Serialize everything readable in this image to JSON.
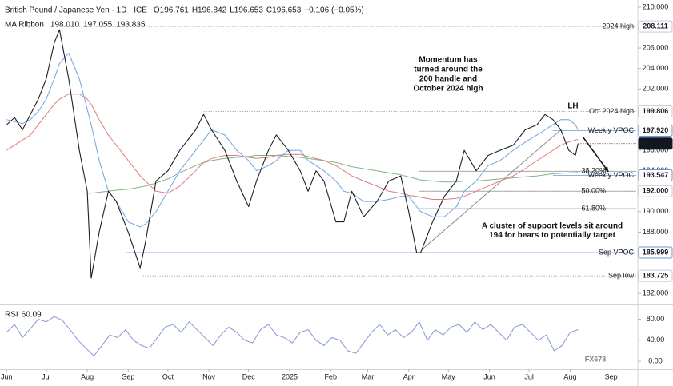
{
  "chart_data": [
    {
      "type": "line",
      "title": "British Pound / Japanese Yen · 1D · ICE",
      "ohlc": [
        "O196.761",
        "H196.842",
        "L196.653",
        "C196.653",
        "−0.106 (−0.05%)"
      ],
      "legend_title": "MA Ribbon",
      "xlim": [
        -5,
        476
      ],
      "ylim": [
        181,
        210.7
      ],
      "yticks": [
        {
          "value": 210,
          "label": "210.000"
        },
        {
          "value": 206,
          "label": "206.000"
        },
        {
          "value": 204,
          "label": "204.000"
        },
        {
          "value": 202,
          "label": "202.000"
        },
        {
          "value": 196,
          "label": "196.000"
        },
        {
          "value": 194,
          "label": "194.000"
        },
        {
          "value": 190,
          "label": "190.000"
        },
        {
          "value": 188,
          "label": "188.000"
        },
        {
          "value": 182,
          "label": "182.000"
        }
      ],
      "x": [
        0,
        6,
        12,
        18,
        24,
        30,
        36,
        40,
        47,
        55,
        61,
        64,
        70,
        77,
        83,
        92,
        101,
        105,
        113,
        122,
        131,
        143,
        149,
        155,
        165,
        174,
        183,
        189,
        198,
        204,
        213,
        222,
        228,
        234,
        240,
        249,
        255,
        261,
        270,
        280,
        289,
        298,
        304,
        310,
        313,
        322,
        331,
        340,
        346,
        355,
        364,
        373,
        383,
        392,
        401,
        407,
        413,
        419,
        425,
        430,
        432
      ],
      "series": [
        {
          "color": "#1c1f26",
          "values": [
            198.5,
            199.2,
            198,
            199.5,
            201,
            203,
            206.5,
            207.8,
            203,
            196,
            192,
            183.5,
            188,
            192,
            191,
            188,
            184.5,
            187,
            193,
            194,
            196,
            198,
            199.5,
            198,
            196,
            193,
            190.5,
            193,
            196,
            197.5,
            196,
            194,
            192,
            194,
            193,
            189,
            189,
            192,
            189.5,
            191,
            193,
            193.5,
            190,
            186,
            186,
            189,
            191.5,
            193,
            196,
            194,
            195.5,
            196,
            196.5,
            198,
            198.5,
            199.5,
            199,
            198,
            196,
            195.5,
            196.653
          ]
        },
        {
          "name": "198.010",
          "color": "#6fa3e0",
          "values": [
            199,
            198.8,
            198.6,
            199,
            199.8,
            201,
            203,
            204.5,
            205.5,
            203,
            200,
            198.5,
            195,
            192,
            191,
            189,
            188.5,
            188.8,
            190,
            192,
            194,
            196,
            197,
            198,
            197.5,
            196,
            195,
            194,
            194.5,
            195,
            196,
            196,
            195,
            194.5,
            194,
            193,
            192,
            191.8,
            191,
            191,
            191.2,
            191.5,
            191.5,
            190.5,
            190,
            189.5,
            189.5,
            190.5,
            192,
            193,
            194.5,
            195,
            196,
            196.8,
            197.5,
            198,
            198.5,
            199,
            199,
            198.5,
            198.01
          ]
        },
        {
          "name": "197.055",
          "color": "#e07b7b",
          "values": [
            196,
            196.5,
            197,
            197.5,
            198.5,
            199.5,
            200.5,
            201,
            201.5,
            201.5,
            201,
            200.5,
            199,
            197.5,
            196.5,
            195,
            193.5,
            193,
            192,
            191.8,
            192.5,
            194,
            194.8,
            195.2,
            195.5,
            195.5,
            195.3,
            195.2,
            195.3,
            195.5,
            195.6,
            195.6,
            195.4,
            195.2,
            195,
            194.5,
            194,
            193.5,
            193,
            192.5,
            192,
            191.8,
            191.6,
            191.5,
            191.4,
            191.2,
            191.2,
            191.3,
            191.5,
            192,
            192.5,
            193,
            193.5,
            194.2,
            195,
            195.5,
            196,
            196.5,
            196.8,
            197,
            197.055
          ]
        },
        {
          "name": "193.835",
          "color": "#7fb77e",
          "values": [
            null,
            null,
            null,
            null,
            null,
            null,
            null,
            null,
            null,
            null,
            191.8,
            191.8,
            191.9,
            192,
            192.1,
            192.2,
            192.4,
            192.5,
            192.8,
            193.2,
            193.8,
            194.5,
            194.8,
            195,
            195.2,
            195.3,
            195.4,
            195.5,
            195.5,
            195.5,
            195.4,
            195.3,
            195.2,
            195.1,
            195,
            194.8,
            194.6,
            194.4,
            194.2,
            194,
            193.8,
            193.6,
            193.4,
            193.2,
            193.1,
            193,
            192.9,
            192.9,
            193,
            193,
            193.1,
            193.2,
            193.3,
            193.4,
            193.5,
            193.6,
            193.7,
            193.75,
            193.8,
            193.82,
            193.835
          ]
        }
      ],
      "levels": [
        {
          "value": 208.111,
          "price_label": "208.111",
          "note": "2024 high",
          "style": "plain",
          "from": 40
        },
        {
          "value": 199.806,
          "price_label": "199.806",
          "note": "Oct 2024 high",
          "style": "plain",
          "from": 149
        },
        {
          "value": 197.92,
          "price_label": "197.920",
          "note": "Weekly VPOC",
          "style": "blue",
          "from": 413
        },
        {
          "value": 196.653,
          "price_label": "196.653",
          "style": "dark",
          "from": 432
        },
        {
          "value": 193.547,
          "price_label": "193.547",
          "note": "Weekly VPOC",
          "style": "blue",
          "from": 413
        },
        {
          "value": 192,
          "price_label": "192.000",
          "style": "box",
          "from": 313
        },
        {
          "value": 185.999,
          "price_label": "185.999",
          "note": "Sep VPOC",
          "style": "blue",
          "from": 90
        },
        {
          "value": 183.725,
          "price_label": "183.725",
          "note": "Sep low",
          "style": "plain",
          "from": 103
        }
      ],
      "fibs": [
        {
          "value": 193.95,
          "label": "38.20%",
          "from": 312
        },
        {
          "value": 192,
          "label": "50.00%",
          "from": 312
        },
        {
          "value": 190.3,
          "label": "61.80%",
          "from": 312
        }
      ],
      "trendline": {
        "x": [
          314,
          419
        ],
        "y": [
          186.3,
          198.0
        ]
      },
      "arrow": {
        "x": [
          436,
          455
        ],
        "y": [
          197.25,
          193.9
        ]
      },
      "annotations": [
        {
          "lines": [
            "Momentum has",
            "turned around the",
            "200 handle and",
            "October 2024 high"
          ]
        },
        {
          "lines": [
            "A cluster of support levels sit around",
            "194 for bears to potentially target"
          ]
        },
        {
          "lines": [
            "LH"
          ]
        }
      ],
      "watermark": "FX678"
    },
    {
      "type": "line",
      "title": "RSI",
      "current_label": "60.09",
      "xlim": [
        -5,
        476
      ],
      "ylim": [
        -15,
        105
      ],
      "yticks": [
        {
          "value": 80,
          "label": "80.00"
        },
        {
          "value": 40,
          "label": "40.00"
        },
        {
          "value": 0,
          "label": "0.00"
        }
      ],
      "xticks": [
        {
          "value": 0,
          "label": "Jun"
        },
        {
          "value": 30,
          "label": "Jul"
        },
        {
          "value": 61,
          "label": "Aug"
        },
        {
          "value": 92,
          "label": "Sep"
        },
        {
          "value": 122,
          "label": "Oct"
        },
        {
          "value": 153,
          "label": "Nov"
        },
        {
          "value": 183,
          "label": "Dec"
        },
        {
          "value": 214,
          "label": "2025"
        },
        {
          "value": 245,
          "label": "Feb"
        },
        {
          "value": 273,
          "label": "Mar"
        },
        {
          "value": 304,
          "label": "Apr"
        },
        {
          "value": 334,
          "label": "May"
        },
        {
          "value": 365,
          "label": "Jun"
        },
        {
          "value": 395,
          "label": "Jul"
        },
        {
          "value": 426,
          "label": "Aug"
        },
        {
          "value": 457,
          "label": "Sep"
        }
      ],
      "x": [
        0,
        6,
        12,
        18,
        24,
        30,
        36,
        42,
        48,
        54,
        60,
        66,
        72,
        78,
        84,
        90,
        96,
        102,
        108,
        114,
        120,
        126,
        132,
        138,
        144,
        150,
        156,
        162,
        168,
        174,
        180,
        186,
        192,
        198,
        204,
        210,
        216,
        222,
        228,
        234,
        240,
        246,
        252,
        258,
        264,
        270,
        276,
        282,
        288,
        294,
        300,
        306,
        312,
        318,
        324,
        330,
        336,
        342,
        348,
        354,
        360,
        366,
        372,
        378,
        384,
        390,
        396,
        402,
        408,
        414,
        420,
        426,
        432
      ],
      "series": [
        {
          "color": "#8596d6",
          "values": [
            55,
            70,
            45,
            62,
            80,
            75,
            85,
            78,
            60,
            40,
            25,
            10,
            30,
            50,
            45,
            60,
            40,
            30,
            25,
            45,
            65,
            70,
            55,
            75,
            60,
            45,
            30,
            50,
            65,
            55,
            40,
            35,
            60,
            70,
            50,
            45,
            35,
            55,
            60,
            40,
            30,
            45,
            40,
            20,
            15,
            35,
            55,
            70,
            50,
            60,
            45,
            55,
            75,
            40,
            60,
            50,
            65,
            70,
            55,
            75,
            60,
            70,
            55,
            40,
            65,
            70,
            55,
            40,
            50,
            20,
            30,
            55,
            60.09
          ]
        }
      ]
    }
  ]
}
